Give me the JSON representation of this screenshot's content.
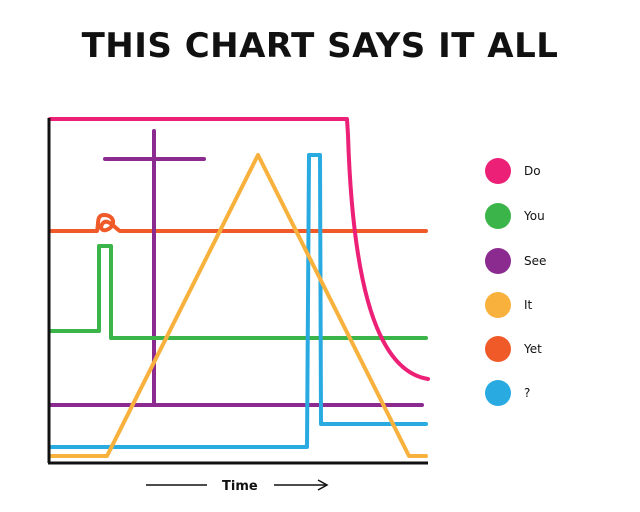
{
  "title": "THIS CHART SAYS IT ALL",
  "chart_data": {
    "type": "line",
    "xlabel": "Time",
    "ylabel": "",
    "legend_position": "right",
    "grid": false,
    "legend": [
      {
        "name": "Do",
        "color": "#ec2077"
      },
      {
        "name": "You",
        "color": "#3bb54a"
      },
      {
        "name": "See",
        "color": "#8b2b8f"
      },
      {
        "name": "It",
        "color": "#f9b13d"
      },
      {
        "name": "Yet",
        "color": "#f05a28"
      },
      {
        "name": "?",
        "color": "#29abe2"
      }
    ]
  }
}
